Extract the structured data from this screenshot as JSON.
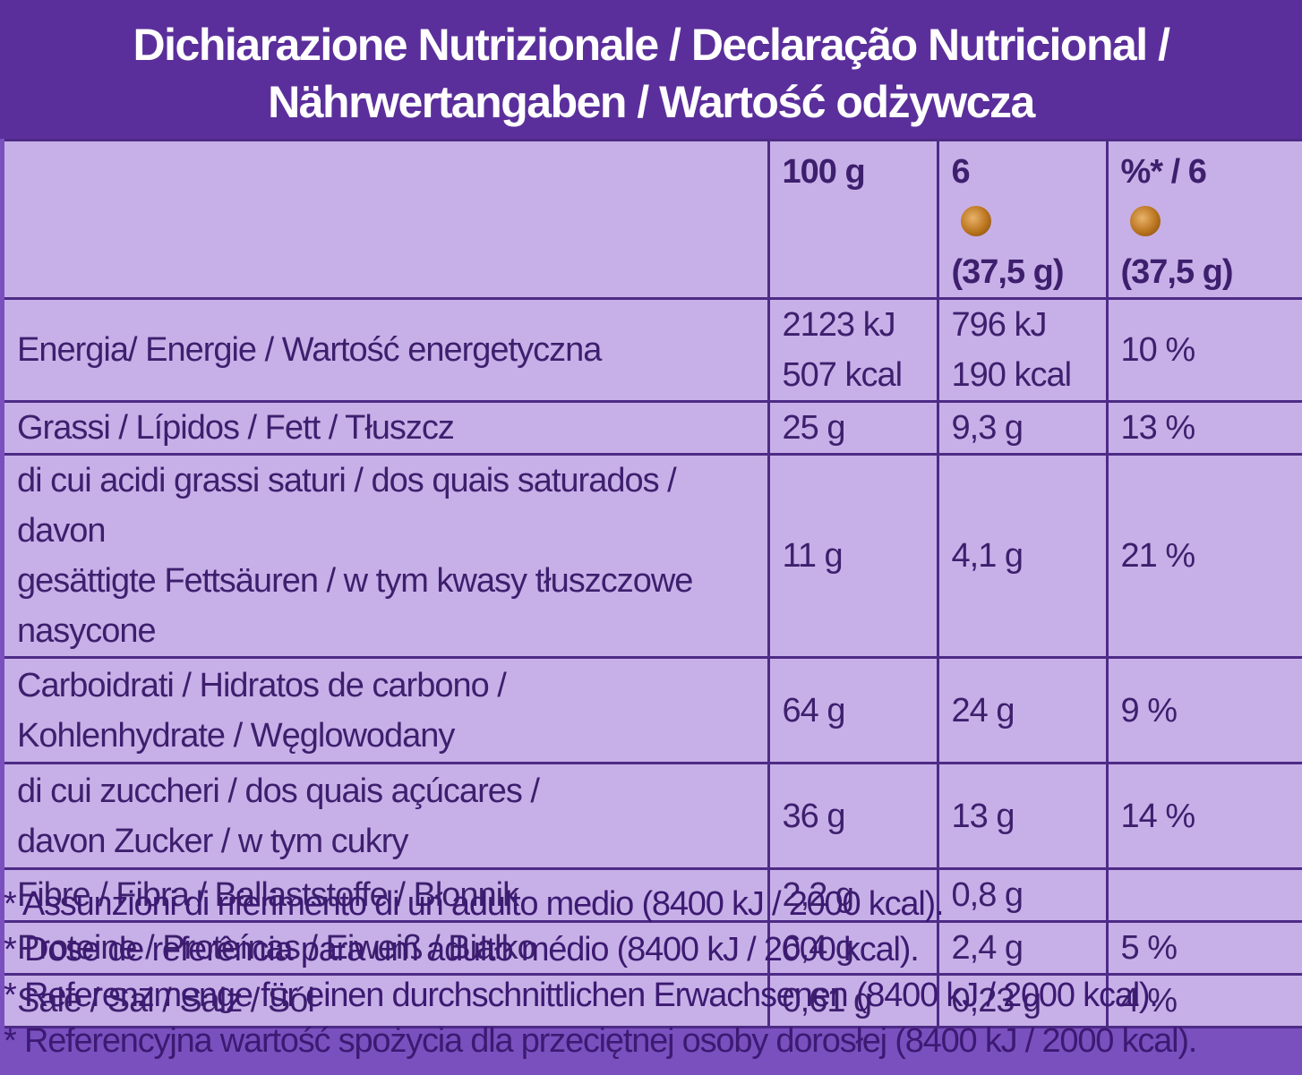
{
  "title": {
    "line1": "Dichiarazione Nutrizionale / Declaração Nutricional /",
    "line2": "Nährwertangaben / Wartość odżywcza"
  },
  "table": {
    "headers": {
      "col_100g": "100 g",
      "col_portion_1": "6",
      "col_portion_2": "(37,5 g)",
      "col_pct_1": "%* / 6",
      "col_pct_2": "(37,5 g)",
      "portion_icon": "chocolate-piece-icon"
    },
    "rows": [
      {
        "label": [
          "Energia/ Energie / Wartość energetyczna"
        ],
        "per100": [
          "2123 kJ",
          "507 kcal"
        ],
        "portion": [
          "796 kJ",
          "190 kcal"
        ],
        "pct": "10 %"
      },
      {
        "label": [
          "Grassi / Lípidos / Fett / Tłuszcz"
        ],
        "per100": [
          "25 g"
        ],
        "portion": [
          "9,3 g"
        ],
        "pct": "13 %"
      },
      {
        "label": [
          "di cui acidi grassi saturi / dos quais saturados / davon",
          "gesättigte Fettsäuren / w tym kwasy tłuszczowe nasycone"
        ],
        "per100": [
          "11 g"
        ],
        "portion": [
          "4,1 g"
        ],
        "pct": "21 %"
      },
      {
        "label": [
          "Carboidrati / Hidratos de carbono /",
          "Kohlenhydrate / Węglowodany"
        ],
        "per100": [
          "64 g"
        ],
        "portion": [
          "24 g"
        ],
        "pct": "9 %"
      },
      {
        "label": [
          "di cui zuccheri / dos quais açúcares /",
          "davon Zucker / w tym cukry"
        ],
        "per100": [
          "36 g"
        ],
        "portion": [
          "13 g"
        ],
        "pct": "14 %"
      },
      {
        "label": [
          "Fibre / Fibra / Ballaststoffe / Błonnik"
        ],
        "per100": [
          "2,2 g"
        ],
        "portion": [
          "0,8 g"
        ],
        "pct": ""
      },
      {
        "label": [
          "Proteine / Proteínas / Eiweiß / Białko"
        ],
        "per100": [
          "6,4 g"
        ],
        "portion": [
          "2,4 g"
        ],
        "pct": "5 %"
      },
      {
        "label": [
          "Sale / Sal / Salz / Sól"
        ],
        "per100": [
          "0,61 g"
        ],
        "portion": [
          "0,23 g"
        ],
        "pct": "4 %"
      }
    ]
  },
  "footnotes": [
    "* Assunzioni di riferimento di un adulto medio (8400 kJ / 2000 kcal).",
    "* Dose de referência para um adulto médio (8400 kJ / 2000 kcal).",
    "* Referenzmenge für einen durchschnittlichen Erwachsenen (8400 kJ / 2000 kcal).",
    "* Referencyjna wartość spożycia dla przeciętnej osoby dorosłej (8400 kJ / 2000 kcal)."
  ],
  "colors": {
    "background": "#7a50bf",
    "header_band": "#5b2f9b",
    "table_fill": "#c7b0e7",
    "text": "#3d1f6e",
    "title_text": "#ffffff"
  }
}
